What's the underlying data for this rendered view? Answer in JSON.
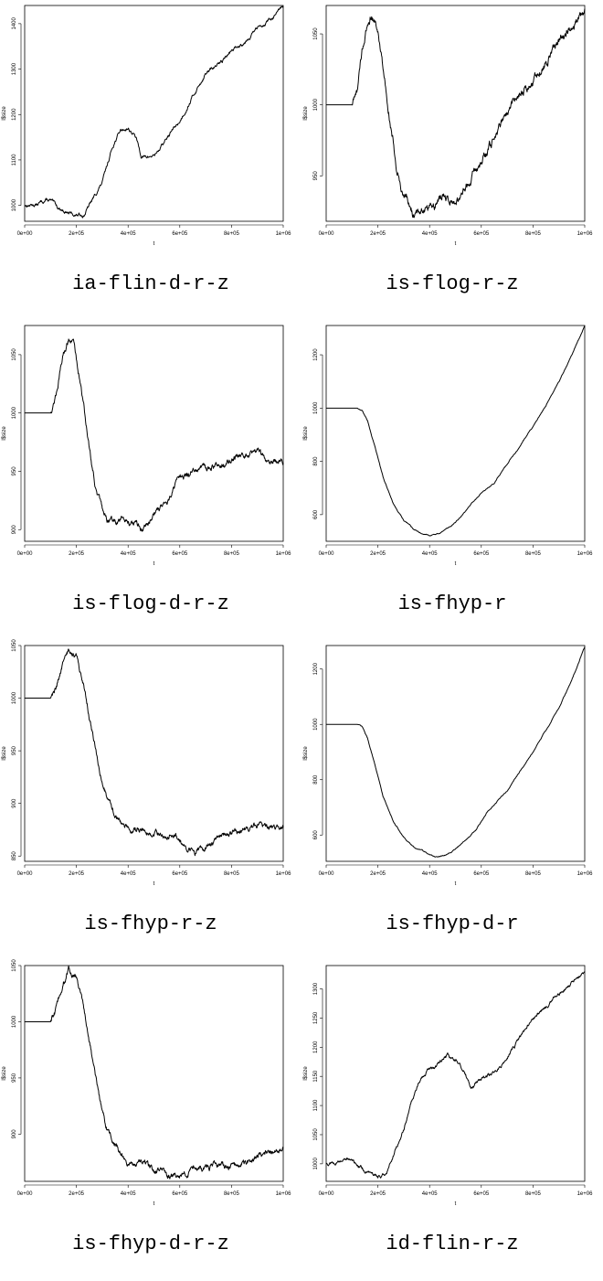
{
  "chart_data": [
    {
      "type": "line",
      "caption": "ia-flin-d-r-z",
      "xlabel": "t",
      "ylabel": "l$size",
      "xlim": [
        0,
        1000000
      ],
      "ylim": [
        965,
        1440
      ],
      "xticks": [
        0,
        200000,
        400000,
        600000,
        800000,
        1000000
      ],
      "xtick_labels": [
        "0e+00",
        "2e+05",
        "4e+05",
        "6e+05",
        "8e+05",
        "1e+06"
      ],
      "yticks": [
        1000,
        1100,
        1200,
        1300,
        1400
      ],
      "ytick_labels": [
        "1000",
        "1100",
        "1200",
        "1300",
        "1400"
      ],
      "noise": 2.5,
      "series": [
        {
          "x": [
            0,
            50000,
            80000,
            100000,
            130000,
            170000,
            200000,
            230000,
            260000,
            300000,
            340000,
            370000,
            400000,
            430000,
            450000,
            470000,
            500000,
            530000,
            570000,
            600000,
            650000,
            700000,
            750000,
            800000,
            850000,
            900000,
            950000,
            1000000
          ],
          "y": [
            1000,
            1002,
            1012,
            1010,
            995,
            983,
            978,
            980,
            1010,
            1050,
            1130,
            1165,
            1170,
            1150,
            1110,
            1105,
            1110,
            1130,
            1165,
            1185,
            1240,
            1290,
            1310,
            1340,
            1360,
            1390,
            1410,
            1435
          ]
        }
      ]
    },
    {
      "type": "line",
      "caption": "is-flog-r-z",
      "xlabel": "t",
      "ylabel": "l$size",
      "xlim": [
        0,
        1000000
      ],
      "ylim": [
        918,
        1070
      ],
      "xticks": [
        0,
        200000,
        400000,
        600000,
        800000,
        1000000
      ],
      "xtick_labels": [
        "0e+00",
        "2e+05",
        "4e+05",
        "6e+05",
        "8e+05",
        "1e+06"
      ],
      "yticks": [
        950,
        1000,
        1050
      ],
      "ytick_labels": [
        "950",
        "1000",
        "1050"
      ],
      "noise": 2,
      "series": [
        {
          "x": [
            0,
            100000,
            120000,
            140000,
            170000,
            190000,
            210000,
            240000,
            270000,
            300000,
            340000,
            380000,
            420000,
            450000,
            480000,
            520000,
            550000,
            580000,
            620000,
            660000,
            700000,
            750000,
            800000,
            850000,
            900000,
            950000,
            1000000
          ],
          "y": [
            1000,
            1000,
            1010,
            1040,
            1062,
            1060,
            1040,
            1000,
            960,
            935,
            922,
            928,
            930,
            935,
            932,
            935,
            945,
            955,
            965,
            980,
            995,
            1010,
            1015,
            1030,
            1045,
            1055,
            1068
          ]
        }
      ]
    },
    {
      "type": "line",
      "caption": "is-flog-d-r-z",
      "xlabel": "t",
      "ylabel": "l$size",
      "xlim": [
        0,
        1000000
      ],
      "ylim": [
        890,
        1075
      ],
      "xticks": [
        0,
        200000,
        400000,
        600000,
        800000,
        1000000
      ],
      "xtick_labels": [
        "0e+00",
        "2e+05",
        "4e+05",
        "6e+05",
        "8e+05",
        "1e+06"
      ],
      "yticks": [
        900,
        950,
        1000,
        1050
      ],
      "ytick_labels": [
        "900",
        "950",
        "1000",
        "1050"
      ],
      "noise": 1.8,
      "series": [
        {
          "x": [
            0,
            100000,
            120000,
            150000,
            170000,
            190000,
            220000,
            250000,
            280000,
            310000,
            340000,
            380000,
            420000,
            460000,
            500000,
            550000,
            600000,
            650000,
            700000,
            750000,
            800000,
            850000,
            900000,
            950000,
            1000000
          ],
          "y": [
            1000,
            1000,
            1015,
            1050,
            1065,
            1060,
            1020,
            970,
            930,
            910,
            905,
            910,
            905,
            900,
            915,
            925,
            945,
            950,
            953,
            955,
            960,
            965,
            968,
            960,
            958
          ]
        }
      ]
    },
    {
      "type": "line",
      "caption": "is-fhyp-r",
      "xlabel": "t",
      "ylabel": "l$size",
      "xlim": [
        0,
        1000000
      ],
      "ylim": [
        500,
        1310
      ],
      "xticks": [
        0,
        200000,
        400000,
        600000,
        800000,
        1000000
      ],
      "xtick_labels": [
        "0e+00",
        "2e+05",
        "4e+05",
        "6e+05",
        "8e+05",
        "1e+06"
      ],
      "yticks": [
        600,
        800,
        1000,
        1200
      ],
      "ytick_labels": [
        "600",
        "800",
        "1000",
        "1200"
      ],
      "noise": 1.2,
      "series": [
        {
          "x": [
            0,
            120000,
            140000,
            160000,
            190000,
            220000,
            260000,
            300000,
            340000,
            370000,
            400000,
            440000,
            480000,
            520000,
            560000,
            600000,
            650000,
            700000,
            750000,
            800000,
            850000,
            900000,
            950000,
            1000000
          ],
          "y": [
            1000,
            1000,
            990,
            950,
            850,
            740,
            640,
            580,
            545,
            530,
            522,
            530,
            555,
            590,
            640,
            680,
            720,
            790,
            860,
            930,
            1010,
            1100,
            1200,
            1310
          ]
        }
      ]
    },
    {
      "type": "line",
      "caption": "is-fhyp-r-z",
      "xlabel": "t",
      "ylabel": "l$size",
      "xlim": [
        0,
        1000000
      ],
      "ylim": [
        845,
        1050
      ],
      "xticks": [
        0,
        200000,
        400000,
        600000,
        800000,
        1000000
      ],
      "xtick_labels": [
        "0e+00",
        "2e+05",
        "4e+05",
        "6e+05",
        "8e+05",
        "1e+06"
      ],
      "yticks": [
        850,
        900,
        950,
        1000,
        1050
      ],
      "ytick_labels": [
        "850",
        "900",
        "950",
        "1000",
        "1050"
      ],
      "noise": 1.8,
      "series": [
        {
          "x": [
            0,
            100000,
            120000,
            150000,
            170000,
            200000,
            230000,
            260000,
            290000,
            320000,
            350000,
            380000,
            420000,
            460000,
            500000,
            540000,
            580000,
            620000,
            660000,
            700000,
            750000,
            800000,
            850000,
            900000,
            950000,
            1000000
          ],
          "y": [
            1000,
            1000,
            1010,
            1035,
            1045,
            1040,
            1010,
            970,
            930,
            905,
            890,
            880,
            875,
            875,
            872,
            870,
            872,
            858,
            852,
            860,
            868,
            872,
            875,
            880,
            878,
            877
          ]
        }
      ]
    },
    {
      "type": "line",
      "caption": "is-fhyp-d-r",
      "xlabel": "t",
      "ylabel": "l$size",
      "xlim": [
        0,
        1000000
      ],
      "ylim": [
        505,
        1285
      ],
      "xticks": [
        0,
        200000,
        400000,
        600000,
        800000,
        1000000
      ],
      "xtick_labels": [
        "0e+00",
        "2e+05",
        "4e+05",
        "6e+05",
        "8e+05",
        "1e+06"
      ],
      "yticks": [
        600,
        800,
        1000,
        1200
      ],
      "ytick_labels": [
        "600",
        "800",
        "1000",
        "1200"
      ],
      "noise": 1.2,
      "series": [
        {
          "x": [
            0,
            120000,
            140000,
            160000,
            190000,
            220000,
            260000,
            300000,
            340000,
            370000,
            400000,
            420000,
            440000,
            470000,
            500000,
            540000,
            580000,
            620000,
            660000,
            700000,
            750000,
            800000,
            850000,
            900000,
            950000,
            1000000
          ],
          "y": [
            1000,
            1000,
            990,
            950,
            850,
            740,
            650,
            590,
            555,
            545,
            530,
            522,
            522,
            530,
            550,
            580,
            620,
            680,
            720,
            760,
            830,
            900,
            980,
            1060,
            1160,
            1280
          ]
        }
      ]
    },
    {
      "type": "line",
      "caption": "is-fhyp-d-r-z",
      "xlabel": "t",
      "ylabel": "l$size",
      "xlim": [
        0,
        1000000
      ],
      "ylim": [
        858,
        1050
      ],
      "xticks": [
        0,
        200000,
        400000,
        600000,
        800000,
        1000000
      ],
      "xtick_labels": [
        "0e+00",
        "2e+05",
        "4e+05",
        "6e+05",
        "8e+05",
        "1e+06"
      ],
      "yticks": [
        900,
        950,
        1000,
        1050
      ],
      "ytick_labels": [
        "900",
        "950",
        "1000",
        "1050"
      ],
      "noise": 1.8,
      "series": [
        {
          "x": [
            0,
            100000,
            120000,
            150000,
            170000,
            200000,
            230000,
            260000,
            290000,
            320000,
            350000,
            380000,
            420000,
            460000,
            500000,
            550000,
            600000,
            650000,
            700000,
            750000,
            800000,
            850000,
            900000,
            950000,
            1000000
          ],
          "y": [
            1000,
            1000,
            1010,
            1035,
            1045,
            1040,
            1010,
            970,
            930,
            905,
            890,
            880,
            872,
            875,
            868,
            865,
            862,
            868,
            870,
            872,
            870,
            875,
            880,
            885,
            890
          ]
        }
      ]
    },
    {
      "type": "line",
      "caption": "id-flin-r-z",
      "xlabel": "t",
      "ylabel": "l$size",
      "xlim": [
        0,
        1000000
      ],
      "ylim": [
        970,
        1340
      ],
      "xticks": [
        0,
        200000,
        400000,
        600000,
        800000,
        1000000
      ],
      "xtick_labels": [
        "0e+00",
        "2e+05",
        "4e+05",
        "6e+05",
        "8e+05",
        "1e+06"
      ],
      "yticks": [
        1000,
        1050,
        1100,
        1150,
        1200,
        1250,
        1300
      ],
      "ytick_labels": [
        "1000",
        "1050",
        "1100",
        "1150",
        "1200",
        "1250",
        "1300"
      ],
      "noise": 2,
      "series": [
        {
          "x": [
            0,
            50000,
            80000,
            100000,
            130000,
            170000,
            200000,
            230000,
            260000,
            300000,
            340000,
            370000,
            400000,
            430000,
            470000,
            500000,
            530000,
            560000,
            580000,
            620000,
            660000,
            700000,
            750000,
            800000,
            850000,
            900000,
            950000,
            1000000
          ],
          "y": [
            1000,
            1003,
            1010,
            1005,
            995,
            985,
            978,
            982,
            1015,
            1060,
            1120,
            1150,
            1165,
            1170,
            1185,
            1180,
            1160,
            1130,
            1140,
            1150,
            1160,
            1185,
            1215,
            1250,
            1270,
            1290,
            1310,
            1330
          ]
        }
      ]
    }
  ]
}
